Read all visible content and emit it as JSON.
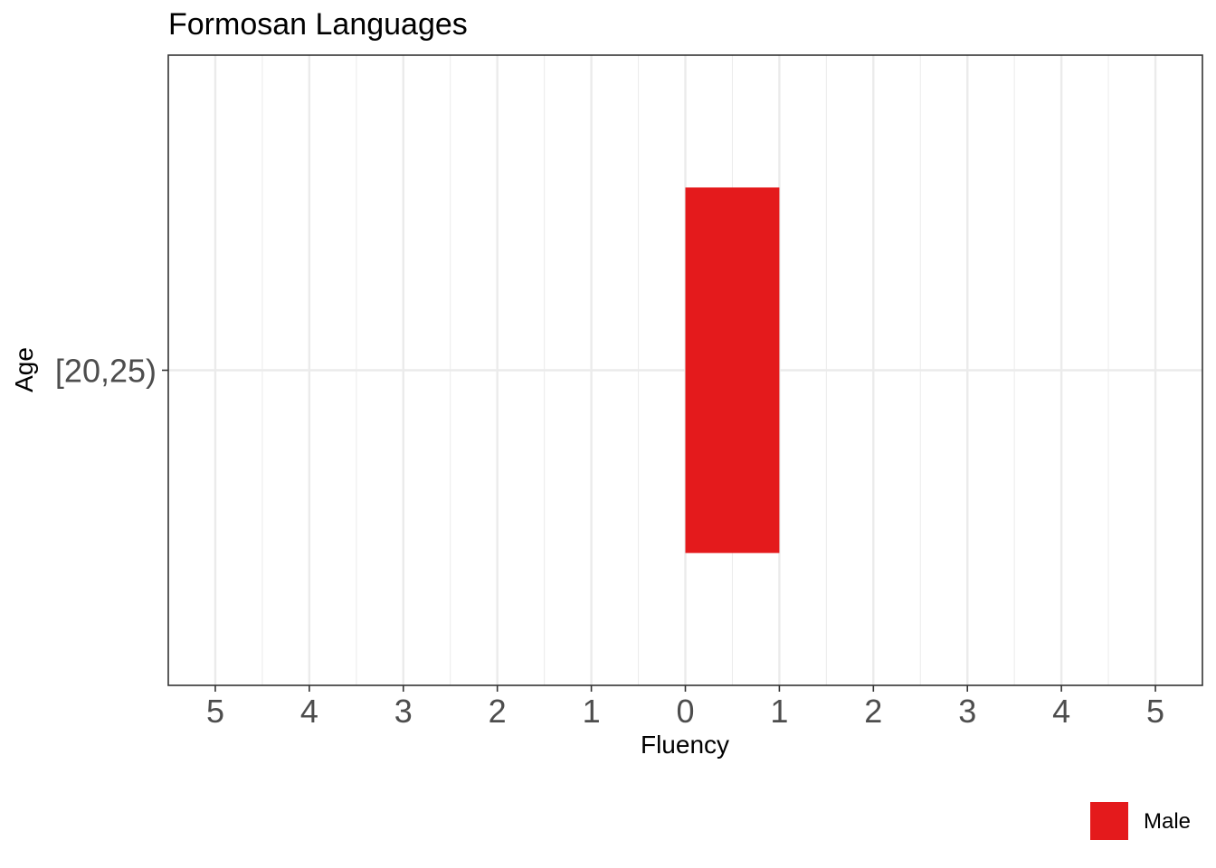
{
  "chart_data": {
    "type": "bar",
    "title": "Formosan Languages",
    "xlabel": "Fluency",
    "ylabel": "Age",
    "orientation": "horizontal",
    "categories": [
      "[20,25)"
    ],
    "series": [
      {
        "name": "Male",
        "color": "#e41a1c",
        "values": [
          1
        ]
      }
    ],
    "xlim": [
      -5.5,
      5.5
    ],
    "x_ticks": [
      -5,
      -4,
      -3,
      -2,
      -1,
      0,
      1,
      2,
      3,
      4,
      5
    ],
    "x_tick_labels": [
      "5",
      "4",
      "3",
      "2",
      "1",
      "0",
      "1",
      "2",
      "3",
      "4",
      "5"
    ],
    "grid": true,
    "legend_position": "bottom-right"
  }
}
